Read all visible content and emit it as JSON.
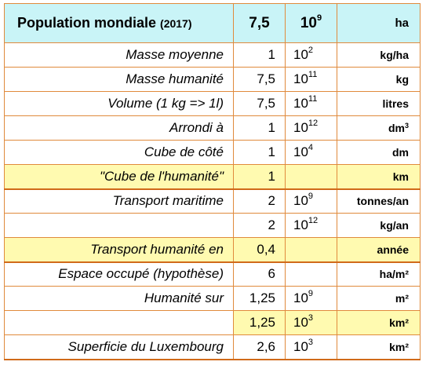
{
  "header": {
    "title": "Population mondiale",
    "year": "(2017)",
    "mantissa": "7,5",
    "base": "10",
    "exponent": "9",
    "unit": "ha"
  },
  "rows": [
    {
      "label": "Masse moyenne",
      "mantissa": "1",
      "base": "10",
      "exponent": "2",
      "unit": "kg/ha"
    },
    {
      "label": "Masse humanité",
      "mantissa": "7,5",
      "base": "10",
      "exponent": "11",
      "unit": "kg"
    },
    {
      "label": "Volume (1 kg => 1l)",
      "mantissa": "7,5",
      "base": "10",
      "exponent": "11",
      "unit": "litres"
    },
    {
      "label": "Arrondi à",
      "mantissa": "1",
      "base": "10",
      "exponent": "12",
      "unit": "dm",
      "unit_exp": "3"
    },
    {
      "label": "Cube de côté",
      "mantissa": "1",
      "base": "10",
      "exponent": "4",
      "unit": "dm"
    },
    {
      "label": "\"Cube de l'humanité\"",
      "mantissa": "1",
      "base": "",
      "exponent": "",
      "unit": "km"
    },
    {
      "label": "Transport maritime",
      "mantissa": "2",
      "base": "10",
      "exponent": "9",
      "unit": "tonnes/an"
    },
    {
      "label": "",
      "mantissa": "2",
      "base": "10",
      "exponent": "12",
      "unit": "kg/an"
    },
    {
      "label": "Transport humanité en",
      "mantissa": "0,4",
      "base": "",
      "exponent": "",
      "unit": "année"
    },
    {
      "label": "Espace occupé (hypothèse)",
      "mantissa": "6",
      "base": "",
      "exponent": "",
      "unit": "ha/m²"
    },
    {
      "label": "Humanité sur",
      "mantissa": "1,25",
      "base": "10",
      "exponent": "9",
      "unit": "m²"
    },
    {
      "label": "",
      "mantissa": "1,25",
      "base": "10",
      "exponent": "3",
      "unit": "km²"
    },
    {
      "label": "Superficie du Luxembourg",
      "mantissa": "2,6",
      "base": "10",
      "exponent": "3",
      "unit": "km²"
    }
  ],
  "colors": {
    "header_bg": "#c9f4f7",
    "highlight_bg": "#fffab0",
    "border": "#e08a3c"
  }
}
